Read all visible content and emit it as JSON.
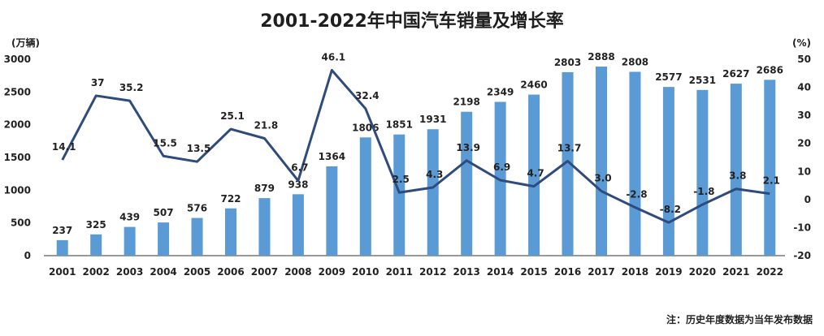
{
  "chart_data": {
    "type": "bar",
    "title": "2001-2022年中国汽车销量及增长率",
    "categories": [
      "2001",
      "2002",
      "2003",
      "2004",
      "2005",
      "2006",
      "2007",
      "2008",
      "2009",
      "2010",
      "2011",
      "2012",
      "2013",
      "2014",
      "2015",
      "2016",
      "2017",
      "2018",
      "2019",
      "2020",
      "2021",
      "2022"
    ],
    "series": [
      {
        "type": "bar",
        "axis": "left",
        "values": [
          237,
          325,
          439,
          507,
          576,
          722,
          879,
          938,
          1364,
          1806,
          1851,
          1931,
          2198,
          2349,
          2460,
          2803,
          2888,
          2808,
          2577,
          2531,
          2627,
          2686
        ],
        "labels": [
          "237",
          "325",
          "439",
          "507",
          "576",
          "722",
          "879",
          "938",
          "1364",
          "1806",
          "1851",
          "1931",
          "2198",
          "2349",
          "2460",
          "2803",
          "2888",
          "2808",
          "2577",
          "2531",
          "2627",
          "2686"
        ],
        "color": "#5b9bd5"
      },
      {
        "type": "line",
        "axis": "right",
        "values": [
          14.1,
          37,
          35.2,
          15.5,
          13.5,
          25.1,
          21.8,
          6.7,
          46.1,
          32.4,
          2.5,
          4.3,
          13.9,
          6.9,
          4.7,
          13.7,
          3.0,
          -2.8,
          -8.2,
          -1.8,
          3.8,
          2.1
        ],
        "labels": [
          "14.1",
          "37",
          "35.2",
          "15.5",
          "13.5",
          "25.1",
          "21.8",
          "6.7",
          "46.1",
          "32.4",
          "2.5",
          "4.3",
          "13.9",
          "6.9",
          "4.7",
          "13.7",
          "3.0",
          "-2.8",
          "-8.2",
          "-1.8",
          "3.8",
          "2.1"
        ],
        "color": "#2f4b7c"
      }
    ],
    "ylabel_left": "(万辆)",
    "ylabel_right": "(%)",
    "ylim_left": [
      0,
      3000
    ],
    "ylim_right": [
      -20,
      50
    ],
    "yticks_left": [
      "0",
      "500",
      "1000",
      "1500",
      "2000",
      "2500",
      "3000"
    ],
    "yticks_right": [
      "-20",
      "-10",
      "0",
      "10",
      "20",
      "30",
      "40",
      "50"
    ],
    "grid": false,
    "note": "注：历史年度数据为当年发布数据"
  }
}
